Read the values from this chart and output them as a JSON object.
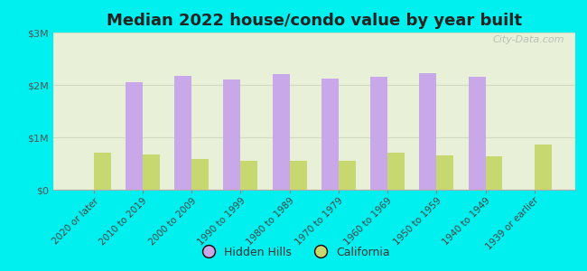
{
  "title": "Median 2022 house/condo value by year built",
  "categories": [
    "2020 or later",
    "2010 to 2019",
    "2000 to 2009",
    "1990 to 1999",
    "1980 to 1989",
    "1970 to 1979",
    "1960 to 1969",
    "1950 to 1959",
    "1940 to 1949",
    "1939 or earlier"
  ],
  "hidden_hills": [
    0,
    2050000,
    2175000,
    2100000,
    2200000,
    2125000,
    2150000,
    2225000,
    2150000,
    0
  ],
  "california": [
    700000,
    680000,
    590000,
    555000,
    545000,
    545000,
    700000,
    650000,
    640000,
    860000
  ],
  "hidden_hills_color": "#c8a8e8",
  "california_color": "#c8d870",
  "background_color": "#00efef",
  "plot_bg_color": "#e8f0d8",
  "grid_color": "#d0dcc0",
  "ylim": [
    0,
    3000000
  ],
  "yticks": [
    0,
    1000000,
    2000000,
    3000000
  ],
  "ytick_labels": [
    "$0",
    "$1M",
    "$2M",
    "$3M"
  ],
  "bar_width": 0.35,
  "legend_labels": [
    "Hidden Hills",
    "California"
  ],
  "watermark": "City-Data.com",
  "title_fontsize": 13,
  "tick_fontsize": 7.5,
  "ytick_fontsize": 8
}
